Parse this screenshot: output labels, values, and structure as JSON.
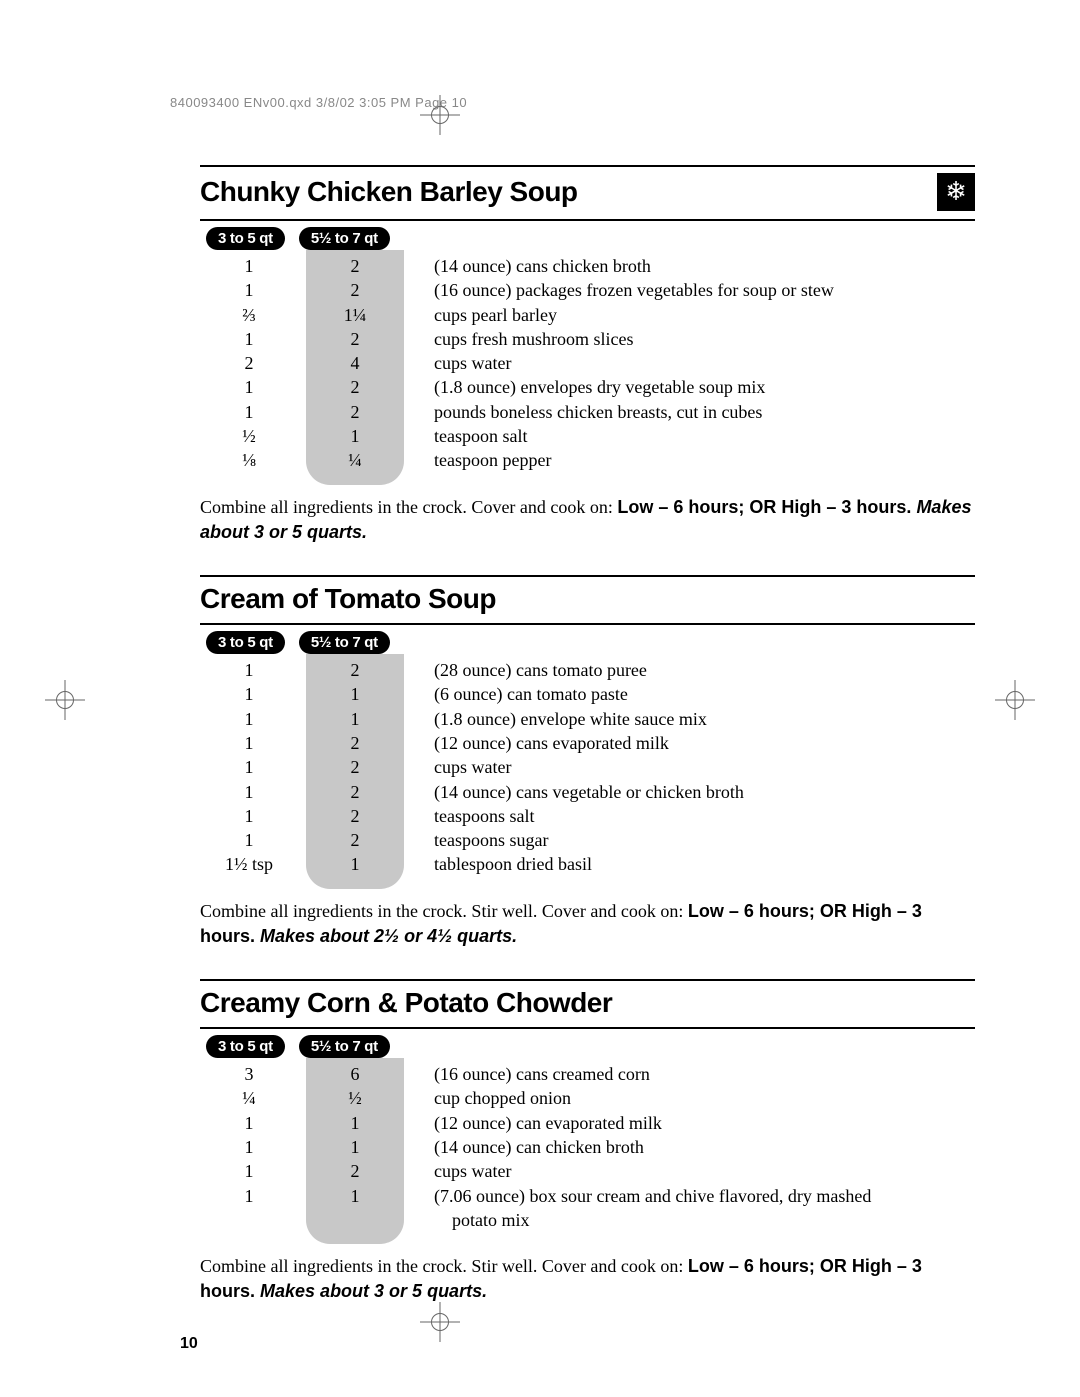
{
  "header_line": "840093400 ENv00.qxd  3/8/02  3:05 PM  Page 10",
  "page_number": "10",
  "badge_small": "3 to 5 qt",
  "badge_large": "5½ to 7 qt",
  "colors": {
    "badge_bg": "#000000",
    "badge_fg": "#ffffff",
    "col_b_bg": "#c8c8c8",
    "rule": "#000000",
    "header_text": "#888888"
  },
  "recipes": [
    {
      "title": "Chunky Chicken Barley Soup",
      "show_snowflake": true,
      "rows": [
        {
          "a": "1",
          "b": "2",
          "desc": "(14 ounce) cans chicken broth"
        },
        {
          "a": "1",
          "b": "2",
          "desc": "(16 ounce) packages frozen vegetables for soup or stew"
        },
        {
          "a": "⅔",
          "b": "1¼",
          "desc": "cups pearl barley"
        },
        {
          "a": "1",
          "b": "2",
          "desc": "cups fresh mushroom slices"
        },
        {
          "a": "2",
          "b": "4",
          "desc": "cups water"
        },
        {
          "a": "1",
          "b": "2",
          "desc": "(1.8 ounce) envelopes dry vegetable soup mix"
        },
        {
          "a": "1",
          "b": "2",
          "desc": "pounds boneless chicken breasts, cut in cubes"
        },
        {
          "a": "½",
          "b": "1",
          "desc": "teaspoon salt"
        },
        {
          "a": "⅛",
          "b": "¼",
          "desc": "teaspoon pepper"
        }
      ],
      "instr_plain": "Combine all ingredients in the crock. Cover and cook on: ",
      "instr_bold": "Low – 6 hours; OR High – 3 hours. ",
      "instr_italic": "Makes about 3 or 5 quarts."
    },
    {
      "title": "Cream of Tomato Soup",
      "show_snowflake": false,
      "rows": [
        {
          "a": "1",
          "b": "2",
          "desc": "(28 ounce) cans tomato puree"
        },
        {
          "a": "1",
          "b": "1",
          "desc": "(6 ounce) can tomato paste"
        },
        {
          "a": "1",
          "b": "1",
          "desc": "(1.8 ounce) envelope white sauce mix"
        },
        {
          "a": "1",
          "b": "2",
          "desc": "(12 ounce) cans evaporated milk"
        },
        {
          "a": "1",
          "b": "2",
          "desc": "cups water"
        },
        {
          "a": "1",
          "b": "2",
          "desc": "(14 ounce) cans vegetable or chicken broth"
        },
        {
          "a": "1",
          "b": "2",
          "desc": "teaspoons salt"
        },
        {
          "a": "1",
          "b": "2",
          "desc": "teaspoons sugar"
        },
        {
          "a": "1½ tsp",
          "b": "1",
          "desc": "tablespoon dried basil"
        }
      ],
      "instr_plain": "Combine all ingredients in the crock. Stir well. Cover and cook on: ",
      "instr_bold": "Low – 6 hours; OR High – 3 hours. ",
      "instr_italic": "Makes about 2½ or 4½ quarts."
    },
    {
      "title": "Creamy Corn & Potato Chowder",
      "show_snowflake": false,
      "rows": [
        {
          "a": "3",
          "b": "6",
          "desc": "(16 ounce) cans creamed corn"
        },
        {
          "a": "¼",
          "b": "½",
          "desc": "cup chopped onion"
        },
        {
          "a": "1",
          "b": "1",
          "desc": "(12 ounce) can evaporated milk"
        },
        {
          "a": "1",
          "b": "1",
          "desc": "(14 ounce) can chicken broth"
        },
        {
          "a": "1",
          "b": "2",
          "desc": "cups water"
        },
        {
          "a": "1",
          "b": "1",
          "desc": "(7.06 ounce) box sour cream and chive flavored, dry mashed"
        },
        {
          "a": "",
          "b": "",
          "desc": "potato mix",
          "indent": true
        }
      ],
      "instr_plain": "Combine all ingredients in the crock. Stir well. Cover and cook on: ",
      "instr_bold": "Low – 6 hours; OR High – 3 hours. ",
      "instr_italic": "Makes about 3 or 5 quarts."
    }
  ]
}
